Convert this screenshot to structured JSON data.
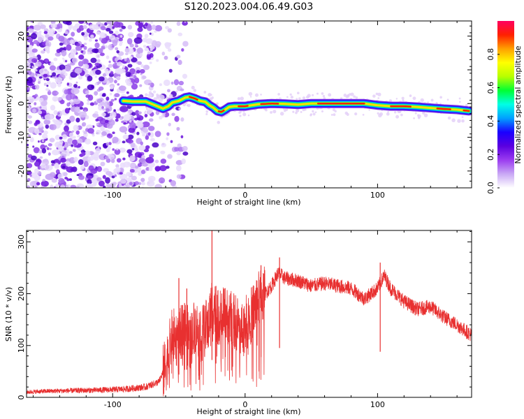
{
  "title": "S120.2023.004.06.49.G03",
  "chart_data": [
    {
      "type": "heatmap",
      "xlabel": "Height of straight line (km)",
      "ylabel": "Frequency (Hz)",
      "xlim": [
        -165,
        171
      ],
      "ylim": [
        -25,
        24.5
      ],
      "x_ticks": [
        -100,
        0,
        100
      ],
      "y_ticks": [
        -20,
        -10,
        0,
        10,
        20
      ],
      "grid": false,
      "noise_region_x": [
        -165,
        -70
      ],
      "ridge": {
        "x": [
          -92,
          -85,
          -75,
          -68,
          -62,
          -58,
          -55,
          -50,
          -45,
          -42,
          -38,
          -34,
          -30,
          -27,
          -24,
          -21,
          -18,
          -15,
          -12,
          -8,
          0,
          10,
          20,
          30,
          40,
          50,
          60,
          70,
          80,
          90,
          100,
          110,
          120,
          130,
          140,
          150,
          160,
          169
        ],
        "y": [
          0.8,
          0.6,
          0.6,
          -0.5,
          -1.5,
          -0.8,
          0.3,
          0.8,
          1.8,
          2.0,
          1.5,
          0.8,
          0.5,
          -0.5,
          -1.2,
          -2.2,
          -2.5,
          -1.8,
          -1.0,
          -0.8,
          -0.8,
          -0.2,
          0.0,
          -0.1,
          -0.3,
          0.0,
          0.0,
          0.0,
          0.0,
          0.0,
          -0.5,
          -0.8,
          -0.8,
          -1.0,
          -1.3,
          -1.6,
          -1.8,
          -2.2
        ]
      },
      "colorbar": {
        "label": "Normalized spectral amplitude",
        "range": [
          0,
          1
        ],
        "ticks": [
          "0.0",
          "0.2",
          "0.4",
          "0.6",
          "0.8"
        ],
        "tick_values": [
          0.0,
          0.2,
          0.4,
          0.6,
          0.8
        ],
        "colors": [
          "#ffffff",
          "#c9a8f5",
          "#9b3cf0",
          "#5a00e0",
          "#1a00ff",
          "#00a0ff",
          "#00ffe6",
          "#00ff33",
          "#b8ff00",
          "#ffff00",
          "#ffa000",
          "#ff2000",
          "#ff0060"
        ]
      }
    },
    {
      "type": "line",
      "xlabel": "Height of straight line (km)",
      "ylabel": "SNR (10 * v/v)",
      "xlim": [
        -165,
        171
      ],
      "ylim": [
        0,
        322
      ],
      "x_ticks": [
        -100,
        0,
        100
      ],
      "y_ticks": [
        0,
        100,
        200,
        300
      ],
      "grid": false,
      "color": "#e83030",
      "x": [
        -165,
        -150,
        -130,
        -110,
        -90,
        -75,
        -65,
        -60,
        -55,
        -50,
        -45,
        -42,
        -38,
        -33,
        -28,
        -25,
        -23,
        -20,
        -15,
        -10,
        -5,
        0,
        5,
        10,
        15,
        20,
        25,
        30,
        40,
        50,
        60,
        70,
        80,
        90,
        100,
        105,
        110,
        120,
        130,
        140,
        150,
        160,
        171
      ],
      "y": [
        10,
        12,
        13,
        14,
        16,
        20,
        30,
        60,
        120,
        110,
        150,
        100,
        140,
        120,
        140,
        180,
        170,
        150,
        160,
        150,
        140,
        140,
        160,
        190,
        200,
        215,
        240,
        230,
        225,
        215,
        220,
        215,
        210,
        190,
        210,
        235,
        210,
        185,
        170,
        175,
        155,
        140,
        120
      ],
      "spikes": [
        {
          "x": -50,
          "y": 230
        },
        {
          "x": -44,
          "y": 210
        },
        {
          "x": -35,
          "y": 140
        },
        {
          "x": -25,
          "y": 322
        },
        {
          "x": -22,
          "y": 215
        },
        {
          "x": 12,
          "y": 255
        },
        {
          "x": 26,
          "y": 270
        },
        {
          "x": 102,
          "y": 260
        }
      ]
    }
  ]
}
